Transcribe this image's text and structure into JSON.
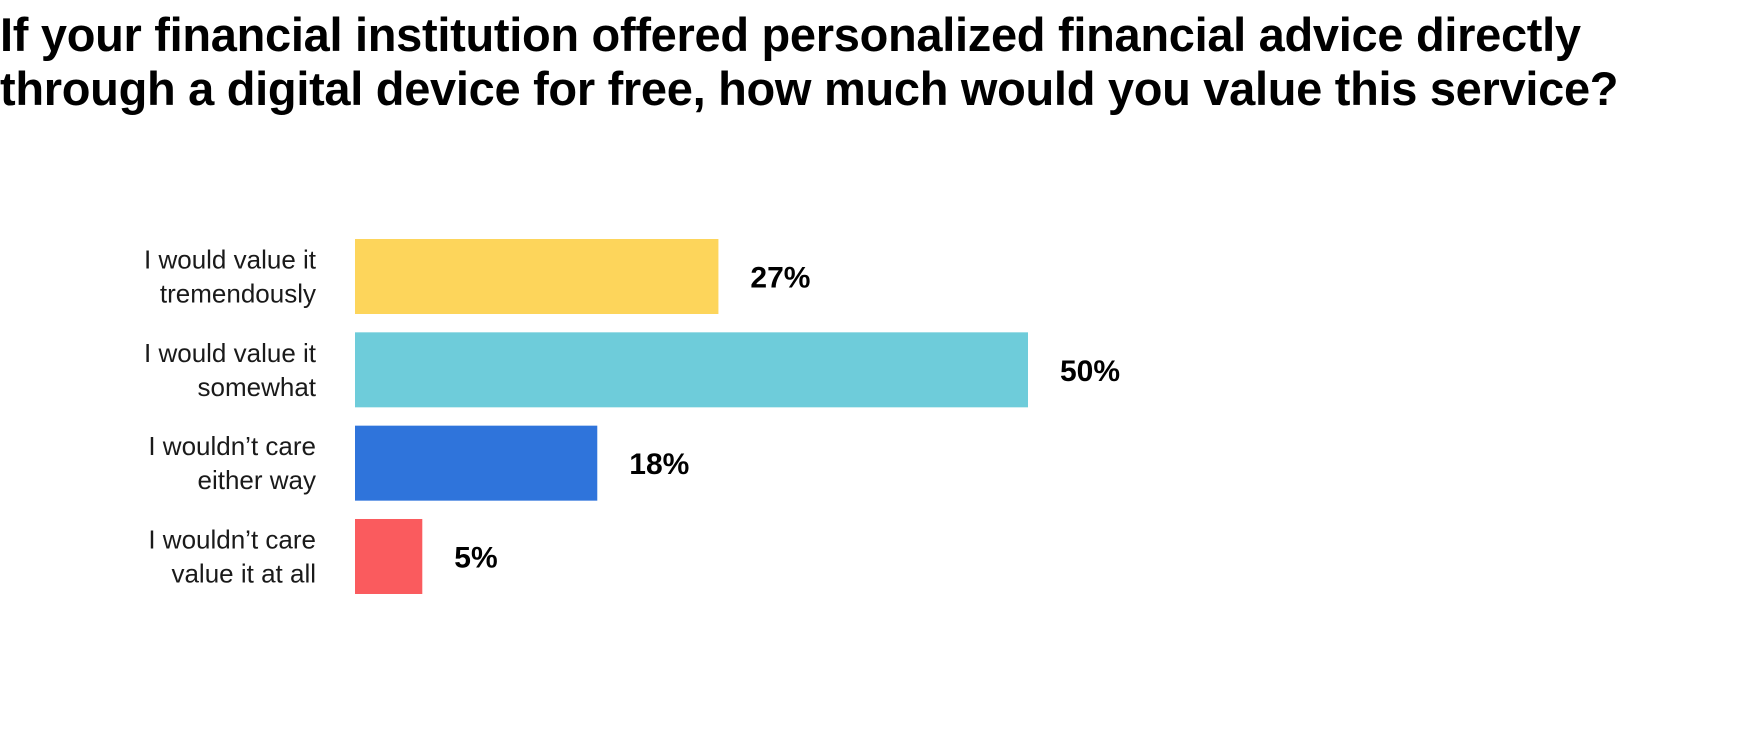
{
  "chart_data": {
    "type": "bar",
    "orientation": "horizontal",
    "title": "If your financial institution offered personalized financial advice directly through a digital device for free, how much would you value this service?",
    "categories": [
      [
        "I would value it",
        "tremendously"
      ],
      [
        "I would value it",
        "somewhat"
      ],
      [
        "I wouldn’t care",
        "either way"
      ],
      [
        "I wouldn’t care",
        "value it at all"
      ]
    ],
    "values": [
      27,
      50,
      18,
      5
    ],
    "value_labels": [
      "27%",
      "50%",
      "18%",
      "5%"
    ],
    "colors": [
      "#FDD55B",
      "#6ECCDA",
      "#2F74DB",
      "#FA5B5E"
    ],
    "xlim": [
      0,
      50
    ],
    "grid": false,
    "legend": "none"
  }
}
